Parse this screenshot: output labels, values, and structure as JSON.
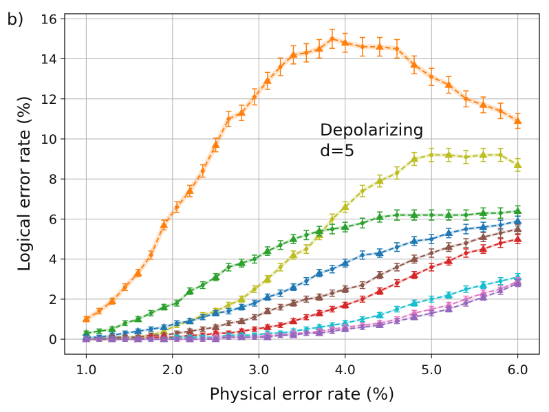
{
  "chart_data": {
    "type": "line",
    "panel_label": "b)",
    "title": "",
    "xlabel": "Physical error rate (%)",
    "ylabel": "Logical error rate (%)",
    "xlim": [
      0.75,
      6.25
    ],
    "ylim": [
      -0.75,
      16.25
    ],
    "xticks": [
      1.0,
      2.0,
      3.0,
      4.0,
      5.0,
      6.0
    ],
    "xtick_labels": [
      "1.0",
      "2.0",
      "3.0",
      "4.0",
      "5.0",
      "6.0"
    ],
    "yticks": [
      0,
      2,
      4,
      6,
      8,
      10,
      12,
      14,
      16
    ],
    "ytick_labels": [
      "0",
      "2",
      "4",
      "6",
      "8",
      "10",
      "12",
      "14",
      "16"
    ],
    "grid": true,
    "annotation": [
      "Depolarizing",
      "d=5"
    ],
    "x": [
      1.0,
      1.15,
      1.3,
      1.45,
      1.6,
      1.75,
      1.9,
      2.05,
      2.2,
      2.35,
      2.5,
      2.65,
      2.8,
      2.95,
      3.1,
      3.25,
      3.4,
      3.55,
      3.7,
      3.85,
      4.0,
      4.2,
      4.4,
      4.6,
      4.8,
      5.0,
      5.2,
      5.4,
      5.6,
      5.8,
      6.0
    ],
    "series": [
      {
        "name": "orange",
        "color": "#ff7f0e",
        "values": [
          1.0,
          1.4,
          1.9,
          2.6,
          3.3,
          4.2,
          5.7,
          6.6,
          7.4,
          8.4,
          9.7,
          11.0,
          11.3,
          12.1,
          12.9,
          13.6,
          14.2,
          14.3,
          14.5,
          15.0,
          14.8,
          14.6,
          14.6,
          14.5,
          13.7,
          13.1,
          12.7,
          12.0,
          11.7,
          11.4,
          10.9
        ]
      },
      {
        "name": "olive",
        "color": "#bcbd22",
        "values": [
          0.0,
          0.0,
          0.0,
          0.1,
          0.1,
          0.2,
          0.4,
          0.7,
          0.9,
          1.2,
          1.4,
          1.7,
          2.0,
          2.5,
          3.0,
          3.6,
          4.2,
          4.5,
          5.2,
          6.0,
          6.6,
          7.4,
          7.9,
          8.3,
          9.0,
          9.2,
          9.2,
          9.1,
          9.2,
          9.2,
          8.7
        ]
      },
      {
        "name": "green",
        "color": "#2ca02c",
        "values": [
          0.3,
          0.4,
          0.5,
          0.8,
          1.0,
          1.3,
          1.6,
          1.8,
          2.4,
          2.7,
          3.1,
          3.6,
          3.8,
          4.0,
          4.4,
          4.7,
          5.0,
          5.2,
          5.4,
          5.5,
          5.6,
          5.8,
          6.1,
          6.2,
          6.2,
          6.2,
          6.2,
          6.2,
          6.3,
          6.3,
          6.4
        ]
      },
      {
        "name": "blue",
        "color": "#1f77b4",
        "values": [
          0.1,
          0.1,
          0.2,
          0.3,
          0.4,
          0.5,
          0.6,
          0.8,
          0.9,
          1.1,
          1.3,
          1.4,
          1.6,
          1.8,
          2.1,
          2.3,
          2.6,
          2.9,
          3.3,
          3.5,
          3.8,
          4.2,
          4.3,
          4.6,
          4.9,
          5.0,
          5.3,
          5.5,
          5.6,
          5.7,
          5.9
        ]
      },
      {
        "name": "brown",
        "color": "#8c564b",
        "values": [
          0.0,
          0.0,
          0.1,
          0.1,
          0.1,
          0.2,
          0.2,
          0.3,
          0.4,
          0.5,
          0.6,
          0.8,
          0.9,
          1.1,
          1.4,
          1.6,
          1.8,
          2.0,
          2.1,
          2.3,
          2.5,
          2.7,
          3.2,
          3.6,
          4.0,
          4.3,
          4.6,
          4.8,
          5.1,
          5.3,
          5.5
        ]
      },
      {
        "name": "red",
        "color": "#d62728",
        "values": [
          0.0,
          0.0,
          0.0,
          0.0,
          0.0,
          0.1,
          0.1,
          0.1,
          0.2,
          0.2,
          0.3,
          0.3,
          0.4,
          0.5,
          0.6,
          0.7,
          0.9,
          1.1,
          1.3,
          1.5,
          1.7,
          2.0,
          2.4,
          2.8,
          3.2,
          3.6,
          3.9,
          4.3,
          4.5,
          4.8,
          5.0
        ]
      },
      {
        "name": "cyan",
        "color": "#17becf",
        "values": [
          0.0,
          0.0,
          0.0,
          0.0,
          0.0,
          0.0,
          0.0,
          0.1,
          0.1,
          0.1,
          0.1,
          0.2,
          0.2,
          0.2,
          0.3,
          0.3,
          0.4,
          0.5,
          0.6,
          0.7,
          0.8,
          1.0,
          1.2,
          1.5,
          1.8,
          2.0,
          2.2,
          2.5,
          2.7,
          2.9,
          3.1
        ]
      },
      {
        "name": "pink",
        "color": "#e377c2",
        "values": [
          0.0,
          0.0,
          0.0,
          0.0,
          0.0,
          0.0,
          0.0,
          0.0,
          0.0,
          0.0,
          0.1,
          0.1,
          0.1,
          0.1,
          0.2,
          0.2,
          0.3,
          0.3,
          0.4,
          0.5,
          0.6,
          0.7,
          0.8,
          1.0,
          1.3,
          1.5,
          1.7,
          2.0,
          2.3,
          2.5,
          2.9
        ]
      },
      {
        "name": "purple",
        "color": "#9467bd",
        "values": [
          0.0,
          0.0,
          0.0,
          0.0,
          0.0,
          0.0,
          0.0,
          0.0,
          0.0,
          0.0,
          0.0,
          0.1,
          0.1,
          0.1,
          0.1,
          0.2,
          0.2,
          0.3,
          0.3,
          0.4,
          0.5,
          0.6,
          0.7,
          0.9,
          1.1,
          1.3,
          1.5,
          1.8,
          2.1,
          2.4,
          2.8
        ]
      }
    ]
  }
}
